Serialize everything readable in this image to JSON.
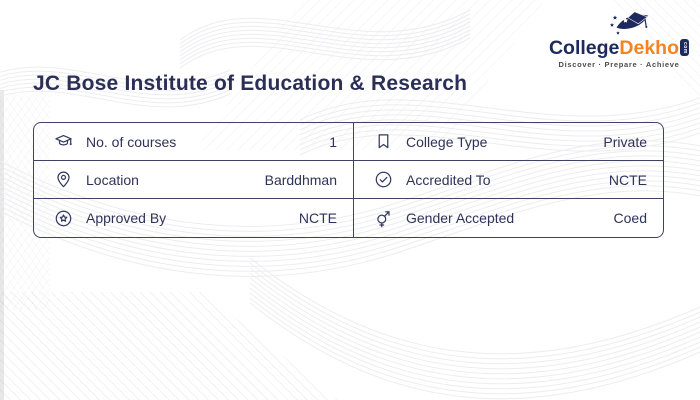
{
  "brand": {
    "logo_college": "College",
    "logo_dekho": "Dekho",
    "logo_domain": "com",
    "tagline": "Discover · Prepare · Achieve",
    "color_navy": "#1e2a5e",
    "color_orange": "#f5831f"
  },
  "header": {
    "title": "JC Bose Institute of Education & Research"
  },
  "info_table": {
    "border_color": "#3e4366",
    "text_color": "#2f3357",
    "cells": [
      {
        "icon": "graduation-cap-icon",
        "label": "No. of courses",
        "value": "1"
      },
      {
        "icon": "bookmark-icon",
        "label": "College Type",
        "value": "Private"
      },
      {
        "icon": "location-pin-icon",
        "label": "Location",
        "value": "Barddhman"
      },
      {
        "icon": "check-circle-icon",
        "label": "Accredited To",
        "value": "NCTE"
      },
      {
        "icon": "approval-badge-icon",
        "label": "Approved By",
        "value": "NCTE"
      },
      {
        "icon": "gender-icon",
        "label": "Gender Accepted",
        "value": "Coed"
      }
    ]
  }
}
